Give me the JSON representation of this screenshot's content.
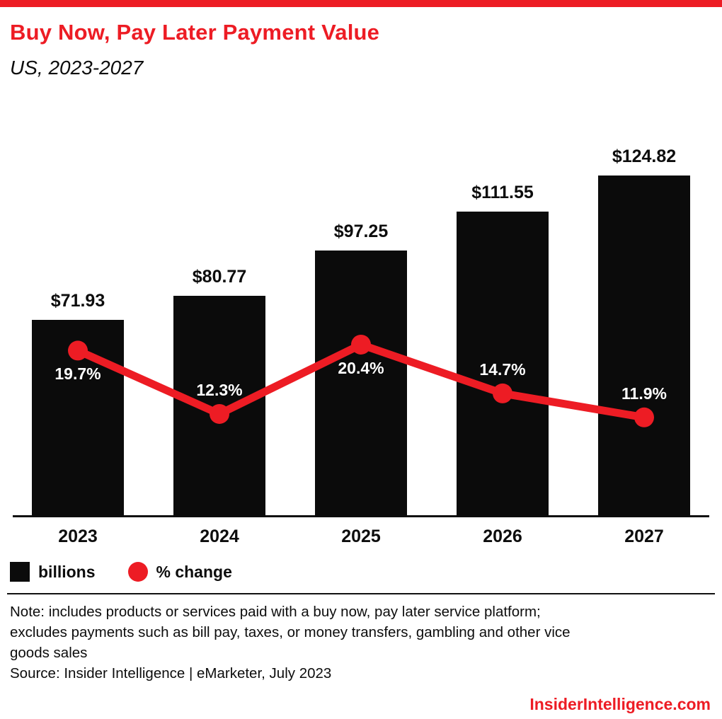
{
  "header": {
    "title": "Buy Now, Pay Later Payment Value",
    "subtitle": "US, 2023-2027"
  },
  "chart_data": {
    "type": "bar",
    "categories": [
      "2023",
      "2024",
      "2025",
      "2026",
      "2027"
    ],
    "series": [
      {
        "name": "billions",
        "type": "bar",
        "values": [
          71.93,
          80.77,
          97.25,
          111.55,
          124.82
        ],
        "labels": [
          "$71.93",
          "$80.77",
          "$97.25",
          "$111.55",
          "$124.82"
        ],
        "color": "#0b0b0b"
      },
      {
        "name": "% change",
        "type": "line",
        "values": [
          19.7,
          12.3,
          20.4,
          14.7,
          11.9
        ],
        "labels": [
          "19.7%",
          "12.3%",
          "20.4%",
          "14.7%",
          "11.9%"
        ],
        "color": "#ed1c24",
        "label_positions": [
          "below",
          "above",
          "below",
          "above",
          "above"
        ]
      }
    ],
    "ylim_bar": [
      0,
      129
    ],
    "grid": false,
    "legend_position": "bottom-left",
    "title": "Buy Now, Pay Later Payment Value",
    "subtitle": "US, 2023-2027"
  },
  "legend": {
    "bar_label": "billions",
    "line_label": "% change"
  },
  "notes": {
    "lines": [
      "Note: includes products or services paid with a buy now, pay later service platform;",
      "excludes payments such as bill pay, taxes, or money transfers, gambling and other vice",
      "goods sales"
    ],
    "source": "Source: Insider Intelligence | eMarketer, July 2023"
  },
  "footer": {
    "brand": "InsiderIntelligence.com"
  },
  "colors": {
    "accent": "#ed1c24",
    "bar": "#0b0b0b",
    "text": "#111111"
  }
}
